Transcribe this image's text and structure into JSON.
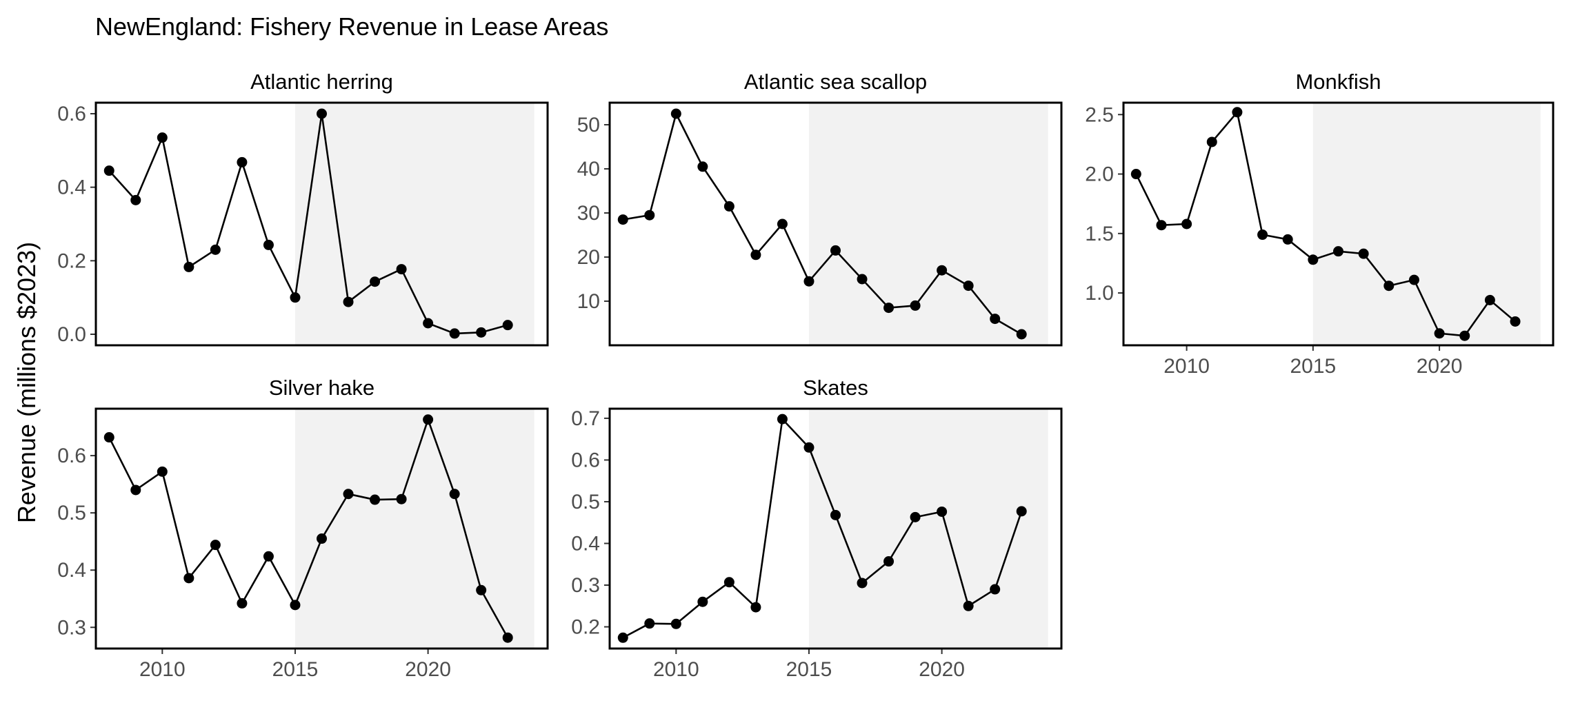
{
  "chart_data": {
    "type": "line",
    "title": "NewEngland: Fishery Revenue in Lease Areas",
    "ylabel": "Revenue (millions $2023)",
    "xlabel": "",
    "x": [
      2008,
      2009,
      2010,
      2011,
      2012,
      2013,
      2014,
      2015,
      2016,
      2017,
      2018,
      2019,
      2020,
      2021,
      2022,
      2023
    ],
    "xlim": [
      2007.5,
      2024.5
    ],
    "shaded_range": [
      2015,
      2024
    ],
    "x_ticks": [
      2010,
      2015,
      2020
    ],
    "x_tick_labels": [
      "2010",
      "2015",
      "2020"
    ],
    "colors": {
      "line": "#000000",
      "shade": "#f2f2f2",
      "panel_border": "#000000",
      "tick_text": "#4d4d4d"
    },
    "panels": [
      {
        "name": "Atlantic herring",
        "values": [
          0.445,
          0.365,
          0.535,
          0.183,
          0.23,
          0.468,
          0.243,
          0.1,
          0.6,
          0.088,
          0.143,
          0.177,
          0.03,
          0.002,
          0.005,
          0.025
        ],
        "ylim": [
          -0.03,
          0.63
        ],
        "y_ticks": [
          0.0,
          0.2,
          0.4,
          0.6
        ],
        "y_tick_labels": [
          "0.0",
          "0.2",
          "0.4",
          "0.6"
        ]
      },
      {
        "name": "Atlantic sea scallop",
        "values": [
          28.5,
          29.5,
          52.5,
          40.5,
          31.5,
          20.5,
          27.5,
          14.5,
          21.5,
          15.0,
          8.5,
          9.0,
          17.0,
          13.5,
          6.0,
          2.5
        ],
        "ylim": [
          0.0,
          55.0
        ],
        "y_ticks": [
          10,
          20,
          30,
          40,
          50
        ],
        "y_tick_labels": [
          "10",
          "20",
          "30",
          "40",
          "50"
        ]
      },
      {
        "name": "Monkfish",
        "values": [
          2.0,
          1.57,
          1.58,
          2.27,
          2.52,
          1.49,
          1.45,
          1.28,
          1.35,
          1.33,
          1.06,
          1.11,
          0.66,
          0.64,
          0.94,
          0.76
        ],
        "ylim": [
          0.56,
          2.6
        ],
        "y_ticks": [
          1.0,
          1.5,
          2.0,
          2.5
        ],
        "y_tick_labels": [
          "1.0",
          "1.5",
          "2.0",
          "2.5"
        ]
      },
      {
        "name": "Silver hake",
        "values": [
          0.632,
          0.54,
          0.572,
          0.386,
          0.444,
          0.342,
          0.424,
          0.339,
          0.455,
          0.533,
          0.523,
          0.524,
          0.663,
          0.533,
          0.365,
          0.282
        ],
        "ylim": [
          0.263,
          0.682
        ],
        "y_ticks": [
          0.3,
          0.4,
          0.5,
          0.6
        ],
        "y_tick_labels": [
          "0.3",
          "0.4",
          "0.5",
          "0.6"
        ]
      },
      {
        "name": "Skates",
        "values": [
          0.174,
          0.208,
          0.207,
          0.26,
          0.307,
          0.247,
          0.698,
          0.63,
          0.468,
          0.305,
          0.357,
          0.463,
          0.476,
          0.25,
          0.29,
          0.477
        ],
        "ylim": [
          0.148,
          0.723
        ],
        "y_ticks": [
          0.2,
          0.3,
          0.4,
          0.5,
          0.6,
          0.7
        ],
        "y_tick_labels": [
          "0.2",
          "0.3",
          "0.4",
          "0.5",
          "0.6",
          "0.7"
        ]
      }
    ]
  }
}
